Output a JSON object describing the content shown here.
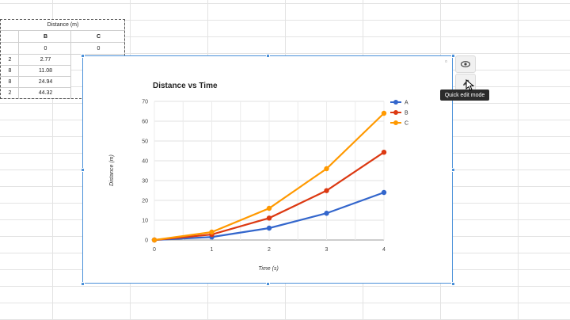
{
  "sheet": {
    "merged_header": "Distance (m)",
    "col_b_header": "B",
    "col_c_header": "C",
    "rows": [
      {
        "a": "",
        "b": "0",
        "c": "0"
      },
      {
        "a": "2",
        "b": "2.77",
        "c": ""
      },
      {
        "a": "8",
        "b": "11.08",
        "c": ""
      },
      {
        "a": "8",
        "b": "24.94",
        "c": ""
      },
      {
        "a": "2",
        "b": "44.32",
        "c": ""
      }
    ]
  },
  "side_panel": {
    "preview_icon": "eye-icon",
    "edit_icon": "pencil-icon",
    "tooltip": "Quick edit mode"
  },
  "chart_data": {
    "type": "line",
    "title": "Distance vs Time",
    "xlabel": "Time (s)",
    "ylabel": "Distance (m)",
    "x": [
      0,
      1,
      2,
      3,
      4
    ],
    "xlim": [
      0,
      4
    ],
    "ylim": [
      0,
      70
    ],
    "yticks": [
      0,
      10,
      20,
      30,
      40,
      50,
      60,
      70
    ],
    "grid": true,
    "legend": "right",
    "series": [
      {
        "name": "A",
        "color": "#3366cc",
        "values": [
          0,
          1.5,
          6,
          13.5,
          24
        ]
      },
      {
        "name": "B",
        "color": "#dc3912",
        "values": [
          0,
          2.77,
          11.08,
          24.94,
          44.32
        ]
      },
      {
        "name": "C",
        "color": "#ff9900",
        "values": [
          0,
          4,
          16,
          36,
          64
        ]
      }
    ]
  }
}
